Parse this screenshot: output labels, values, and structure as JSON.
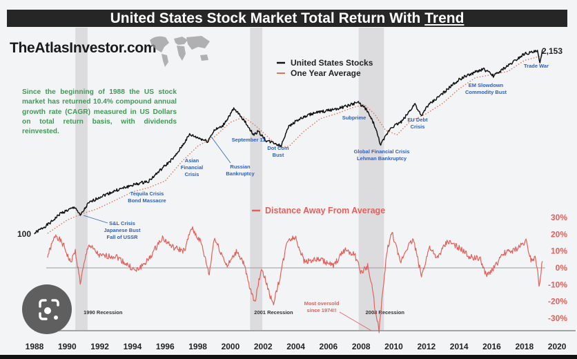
{
  "title": {
    "main": "United States Stock Market Total Return With ",
    "underlined": "Trend"
  },
  "brand": "TheAtlasInvestor.com",
  "blurb": "Since the beginning of 1988 the US stock market has returned 10.4% compound annual growth rate (CAGR) measured in US Dollars on total return basis, with dividends reinvested.",
  "colors": {
    "stocks": "#111111",
    "average": "#e0735a",
    "distance": "#e4605a",
    "annotation": "#2d5fc4",
    "blurb": "#3f9a55",
    "recession": "#dcdcdf"
  },
  "chart_data": [
    {
      "type": "line",
      "title": "United States Stock Market Total Return With Trend",
      "yscale": "log",
      "legend": [
        "United States Stocks",
        "One Year Average"
      ],
      "legend_position": "top-center",
      "start_label": "100",
      "end_label": "2,153",
      "series": [
        {
          "name": "United States Stocks",
          "x": [
            1988,
            1989,
            1989.6,
            1990.5,
            1990.8,
            1991.3,
            1992,
            1993,
            1994,
            1995,
            1996,
            1996.6,
            1997.5,
            1997.9,
            1998.6,
            1999,
            1999.5,
            2000.2,
            2000.6,
            2001,
            2001.4,
            2001.7,
            2002.2,
            2002.7,
            2003.1,
            2003.5,
            2004,
            2005,
            2006,
            2007,
            2007.8,
            2008.3,
            2008.8,
            2009.2,
            2009.8,
            2010.5,
            2011.3,
            2011.7,
            2012,
            2013,
            2014,
            2014.8,
            2015.5,
            2016.1,
            2017,
            2018,
            2018.8,
            2018.95,
            2019.1
          ],
          "y": [
            100,
            120,
            140,
            155,
            134,
            165,
            184,
            205,
            224,
            240,
            310,
            360,
            521,
            500,
            465,
            560,
            597,
            798,
            720,
            620,
            520,
            550,
            470,
            453,
            430,
            583,
            655,
            740,
            780,
            830,
            896,
            800,
            620,
            438,
            583,
            650,
            875,
            700,
            827,
            1040,
            1310,
            1450,
            1560,
            1390,
            1650,
            2020,
            2100,
            1700,
            2153
          ]
        },
        {
          "name": "One Year Average",
          "x": [
            1988.8,
            1990,
            1991,
            1991.8,
            1993,
            1994,
            1995,
            1996,
            1997,
            1998,
            1999,
            2000,
            2000.8,
            2001.5,
            2002.3,
            2003,
            2003.6,
            2004.5,
            2005.5,
            2006.5,
            2007.5,
            2008.2,
            2008.8,
            2009.5,
            2010.2,
            2011,
            2012,
            2013,
            2014,
            2015,
            2016,
            2017,
            2018,
            2019.1
          ],
          "y": [
            100,
            125,
            140,
            150,
            175,
            200,
            215,
            240,
            330,
            430,
            500,
            640,
            700,
            610,
            500,
            420,
            430,
            550,
            680,
            740,
            820,
            860,
            740,
            560,
            520,
            650,
            740,
            880,
            1120,
            1350,
            1420,
            1500,
            1800,
            1950
          ]
        }
      ],
      "annotations": [
        {
          "lines": [
            "S&L Crisis",
            "Japanese Bust",
            "Fall of USSR"
          ]
        },
        {
          "lines": [
            "Tequila Crisis",
            "Bond Massacre"
          ]
        },
        {
          "lines": [
            "Asian",
            "Financial",
            "Crisis"
          ]
        },
        {
          "lines": [
            "Russian",
            "Bankruptcy"
          ]
        },
        {
          "lines": [
            "September 11"
          ]
        },
        {
          "lines": [
            "Dot Com",
            "Bust"
          ]
        },
        {
          "lines": [
            "Subprime"
          ]
        },
        {
          "lines": [
            "Global Financial Crisis",
            "Lehman Bankruptcy"
          ]
        },
        {
          "lines": [
            "EU Debt",
            "Crisis"
          ]
        },
        {
          "lines": [
            "EM Slowdown",
            "Commodity Bust"
          ]
        },
        {
          "lines": [
            "Trade War"
          ]
        }
      ]
    },
    {
      "type": "line",
      "legend": [
        "Distance Away From Average"
      ],
      "ylabel_ticks": [
        "30%",
        "20%",
        "10%",
        "0%",
        "-10%",
        "-20%",
        "-30%"
      ],
      "ylim": [
        -38,
        32
      ],
      "series": [
        {
          "name": "Distance Away From Average",
          "x": [
            1988.8,
            1989.3,
            1989.8,
            1990.2,
            1990.5,
            1990.8,
            1991.3,
            1992,
            1993,
            1994.2,
            1995,
            1995.8,
            1996.5,
            1997.2,
            1997.6,
            1998.2,
            1998.7,
            1999,
            1999.8,
            2000.4,
            2000.8,
            2001.2,
            2001.5,
            2001.9,
            2002.2,
            2002.6,
            2003,
            2003.5,
            2004,
            2004.5,
            2005.5,
            2006.3,
            2007,
            2007.6,
            2008,
            2008.4,
            2008.7,
            2008.9,
            2009.1,
            2009.3,
            2009.6,
            2009.9,
            2010.4,
            2010.8,
            2011.2,
            2011.7,
            2012.2,
            2012.6,
            2013.3,
            2014,
            2014.6,
            2015.3,
            2015.7,
            2016.2,
            2016.8,
            2017.5,
            2018.1,
            2018.4,
            2018.7,
            2018.9,
            2019.1
          ],
          "y": [
            7,
            20,
            13,
            3,
            10,
            -9,
            14,
            7,
            7,
            -2,
            5,
            18,
            12,
            10,
            24,
            15,
            -4,
            18,
            1,
            10,
            3,
            -13,
            -20,
            0,
            -9,
            -22,
            -7,
            17,
            18,
            4,
            5,
            1,
            11,
            8,
            -3,
            1,
            -13,
            -28,
            -37,
            -17,
            11,
            21,
            3,
            12,
            17,
            -5,
            13,
            5,
            16,
            12,
            7,
            5,
            -5,
            1,
            9,
            11,
            16,
            5,
            6,
            -10,
            4
          ]
        }
      ],
      "annotation": "Most oversold since 1974!!"
    }
  ],
  "x_axis": {
    "ticks": [
      "1988",
      "1990",
      "1992",
      "1994",
      "1996",
      "1998",
      "2000",
      "2002",
      "2004",
      "2006",
      "2008",
      "2010",
      "2012",
      "2014",
      "2016",
      "2018",
      "2020"
    ],
    "range": [
      1988,
      2020
    ]
  },
  "recessions": [
    {
      "label": "1990 Recession",
      "start": 1990.5,
      "end": 1991.25
    },
    {
      "label": "2001 Recession",
      "start": 2001.2,
      "end": 2001.95
    },
    {
      "label": "2008 Recession",
      "start": 2007.85,
      "end": 2009.4
    }
  ]
}
